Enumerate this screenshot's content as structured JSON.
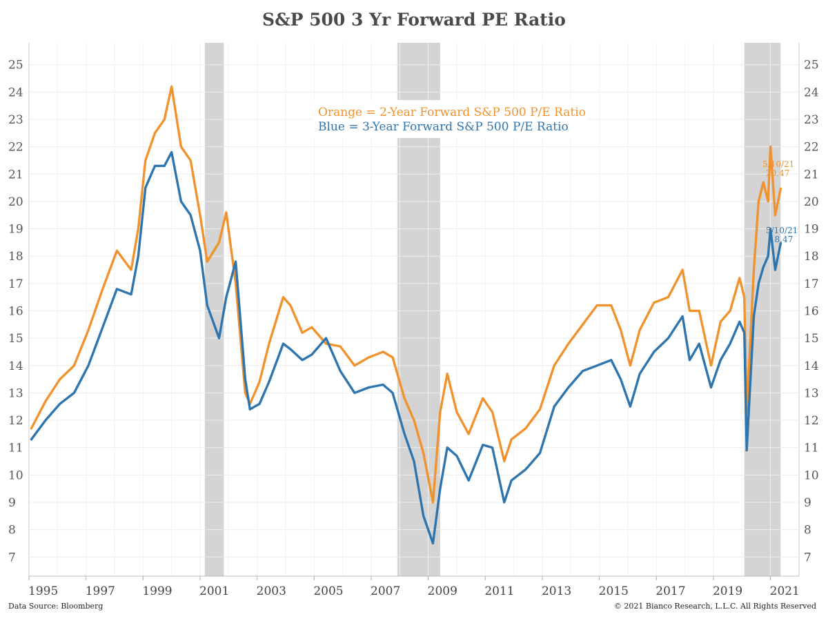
{
  "chart_data": {
    "type": "line",
    "title": "S&P 500 3 Yr Forward PE Ratio",
    "xlabel": "",
    "ylabel": "",
    "x_range": [
      "1995-01-01",
      "2021-12-31"
    ],
    "ylim": [
      6.3,
      25.8
    ],
    "x_ticks": [
      "1995",
      "1997",
      "1999",
      "2001",
      "2003",
      "2005",
      "2007",
      "2009",
      "2011",
      "2013",
      "2015",
      "2017",
      "2019",
      "2021"
    ],
    "y_ticks": [
      7,
      8,
      9,
      10,
      11,
      12,
      13,
      14,
      15,
      16,
      17,
      18,
      19,
      20,
      21,
      22,
      23,
      24,
      25
    ],
    "grid": true,
    "recessions": [
      {
        "start": "2001-03-01",
        "end": "2001-11-01"
      },
      {
        "start": "2007-12-01",
        "end": "2009-06-01"
      },
      {
        "start": "2020-02-01",
        "end": "2021-05-10"
      }
    ],
    "legend_lines": [
      {
        "text": "Orange = 2-Year Forward S&P 500 P/E Ratio",
        "color": "#f0922e"
      },
      {
        "text": "Blue = 3-Year Forward S&P 500 P/E Ratio",
        "color": "#2f75ad"
      }
    ],
    "series": [
      {
        "color": "#f0922e",
        "last_label_date": "5/10/21",
        "last_label_value": "20.47",
        "x": [
          "1995-02",
          "1995-08",
          "1996-02",
          "1996-08",
          "1997-02",
          "1997-08",
          "1998-02",
          "1998-08",
          "1998-11",
          "1999-02",
          "1999-06",
          "1999-10",
          "2000-01",
          "2000-05",
          "2000-09",
          "2001-01",
          "2001-04",
          "2001-09",
          "2001-12",
          "2002-04",
          "2002-08",
          "2002-10",
          "2003-02",
          "2003-06",
          "2003-12",
          "2004-03",
          "2004-08",
          "2004-12",
          "2005-06",
          "2005-12",
          "2006-06",
          "2006-12",
          "2007-06",
          "2007-10",
          "2008-03",
          "2008-07",
          "2008-11",
          "2009-03",
          "2009-06",
          "2009-09",
          "2010-01",
          "2010-06",
          "2010-12",
          "2011-04",
          "2011-09",
          "2011-12",
          "2012-06",
          "2012-12",
          "2013-06",
          "2013-12",
          "2014-06",
          "2014-12",
          "2015-06",
          "2015-10",
          "2016-02",
          "2016-06",
          "2016-12",
          "2017-06",
          "2017-12",
          "2018-03",
          "2018-07",
          "2018-12",
          "2019-04",
          "2019-08",
          "2019-12",
          "2020-02",
          "2020-03",
          "2020-06",
          "2020-08",
          "2020-10",
          "2020-12",
          "2021-01",
          "2021-03",
          "2021-05-10"
        ],
        "y": [
          11.7,
          12.7,
          13.5,
          14.0,
          15.3,
          16.8,
          18.2,
          17.5,
          19.0,
          21.5,
          22.5,
          23.0,
          24.2,
          22.0,
          21.5,
          19.5,
          17.8,
          18.5,
          19.6,
          17.0,
          13.0,
          12.6,
          13.4,
          14.8,
          16.5,
          16.2,
          15.2,
          15.4,
          14.8,
          14.7,
          14.0,
          14.3,
          14.5,
          14.3,
          12.8,
          12.0,
          10.8,
          9.0,
          12.3,
          13.7,
          12.3,
          11.5,
          12.8,
          12.3,
          10.5,
          11.3,
          11.7,
          12.4,
          14.0,
          14.8,
          15.5,
          16.2,
          16.2,
          15.3,
          14.0,
          15.3,
          16.3,
          16.5,
          17.5,
          16.0,
          16.0,
          14.0,
          15.6,
          16.0,
          17.2,
          16.5,
          12.3,
          17.5,
          20.0,
          20.7,
          20.0,
          22.0,
          19.5,
          20.47
        ]
      },
      {
        "color": "#2f75ad",
        "last_label_date": "5/10/21",
        "last_label_value": "18.47",
        "x": [
          "1995-02",
          "1995-08",
          "1996-02",
          "1996-08",
          "1997-02",
          "1997-08",
          "1998-02",
          "1998-08",
          "1998-11",
          "1999-02",
          "1999-06",
          "1999-10",
          "2000-01",
          "2000-05",
          "2000-09",
          "2001-01",
          "2001-04",
          "2001-09",
          "2001-12",
          "2002-04",
          "2002-08",
          "2002-10",
          "2003-02",
          "2003-06",
          "2003-12",
          "2004-03",
          "2004-08",
          "2004-12",
          "2005-06",
          "2005-12",
          "2006-06",
          "2006-12",
          "2007-06",
          "2007-10",
          "2008-03",
          "2008-07",
          "2008-11",
          "2009-03",
          "2009-06",
          "2009-09",
          "2010-01",
          "2010-06",
          "2010-12",
          "2011-04",
          "2011-09",
          "2011-12",
          "2012-06",
          "2012-12",
          "2013-06",
          "2013-12",
          "2014-06",
          "2014-12",
          "2015-06",
          "2015-10",
          "2016-02",
          "2016-06",
          "2016-12",
          "2017-06",
          "2017-12",
          "2018-03",
          "2018-07",
          "2018-12",
          "2019-04",
          "2019-08",
          "2019-12",
          "2020-02",
          "2020-03",
          "2020-06",
          "2020-08",
          "2020-10",
          "2020-12",
          "2021-01",
          "2021-03",
          "2021-05-10"
        ],
        "y": [
          11.3,
          12.0,
          12.6,
          13.0,
          14.0,
          15.4,
          16.8,
          16.6,
          18.0,
          20.5,
          21.3,
          21.3,
          21.8,
          20.0,
          19.5,
          18.2,
          16.2,
          15.0,
          16.5,
          17.8,
          13.5,
          12.4,
          12.6,
          13.4,
          14.8,
          14.6,
          14.2,
          14.4,
          15.0,
          13.8,
          13.0,
          13.2,
          13.3,
          13.0,
          11.5,
          10.5,
          8.5,
          7.5,
          9.5,
          11.0,
          10.7,
          9.8,
          11.1,
          11.0,
          9.0,
          9.8,
          10.2,
          10.8,
          12.5,
          13.2,
          13.8,
          14.0,
          14.2,
          13.5,
          12.5,
          13.7,
          14.5,
          15.0,
          15.8,
          14.2,
          14.8,
          13.2,
          14.2,
          14.8,
          15.6,
          15.2,
          10.9,
          15.8,
          17.0,
          17.6,
          18.0,
          19.0,
          17.5,
          18.47
        ]
      }
    ]
  },
  "footer": {
    "source": "Data Source: Bloomberg",
    "copyright": "© 2021 Bianco Research, L.L.C. All Rights Reserved"
  }
}
